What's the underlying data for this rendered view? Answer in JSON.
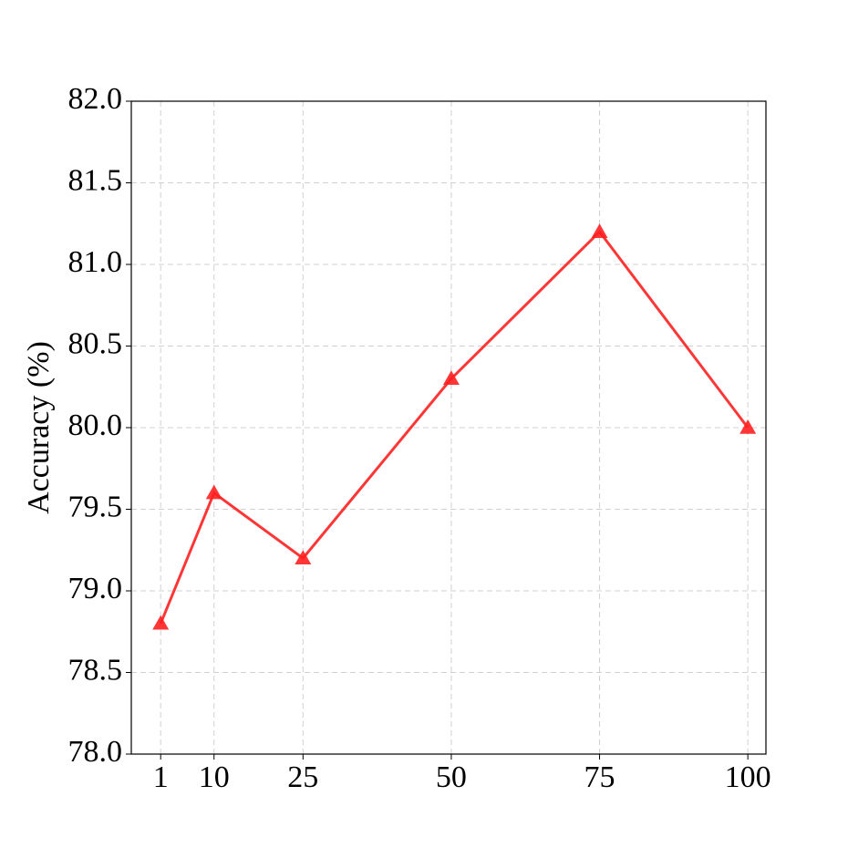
{
  "chart_data": {
    "type": "line",
    "ylabel": "Accuracy (%)",
    "x": [
      1,
      10,
      25,
      50,
      75,
      100
    ],
    "series": [
      {
        "color": "#ff2020",
        "marker": "triangle",
        "values": [
          78.8,
          79.6,
          79.2,
          80.3,
          81.2,
          80.0
        ]
      }
    ],
    "xlim": [
      -3.95,
      103.05
    ],
    "xticks": [
      1,
      10,
      25,
      50,
      75,
      100
    ],
    "ylim": [
      78,
      82
    ],
    "yticks": [
      {
        "value": 78,
        "label": "78.0"
      },
      78.5,
      {
        "value": 79,
        "label": "79.0"
      },
      79.5,
      {
        "value": 80,
        "label": "80.0"
      },
      80.5,
      {
        "value": 81,
        "label": "81.0"
      },
      81.5,
      {
        "value": 82,
        "label": "82.0"
      }
    ],
    "grid": true
  }
}
